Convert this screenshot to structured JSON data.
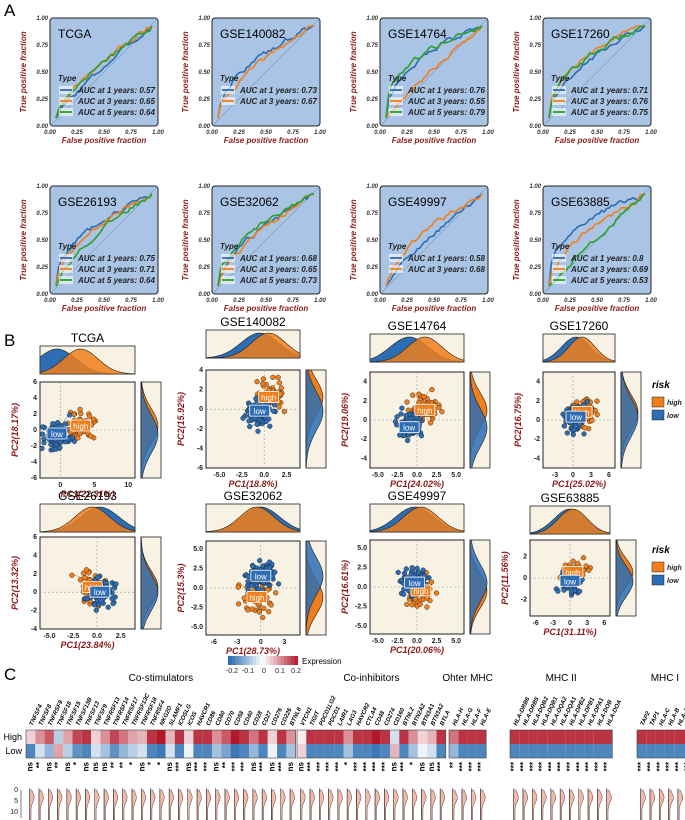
{
  "panel_labels": [
    "A",
    "B",
    "C"
  ],
  "chart_data": [
    {
      "type": "line",
      "panel": "A",
      "title": "Time-dependent ROC curves",
      "xlabel": "False positive fraction",
      "ylabel": "True positive fraction",
      "xlim": [
        0,
        1
      ],
      "ylim": [
        0,
        1
      ],
      "ticks": [
        "0.00",
        "0.25",
        "0.50",
        "0.75",
        "1.00"
      ],
      "legend_title": "Type",
      "colors": {
        "1": "#2d6db3",
        "3": "#f07f1b",
        "5": "#2ca02c",
        "bg": "#a9c4e4"
      },
      "plots": [
        {
          "name": "TCGA",
          "legend": [
            "AUC at 1 years: 0.57",
            "AUC at 3 years: 0.65",
            "AUC at 5 years: 0.64"
          ],
          "auc": [
            0.57,
            0.65,
            0.64
          ]
        },
        {
          "name": "GSE140082",
          "legend": [
            "AUC at 1 years: 0.73",
            "AUC at 3 years: 0.67"
          ],
          "auc": [
            0.73,
            0.67
          ]
        },
        {
          "name": "GSE14764",
          "legend": [
            "AUC at 1 years: 0.76",
            "AUC at 3 years: 0.55",
            "AUC at 5 years: 0.79"
          ],
          "auc": [
            0.76,
            0.55,
            0.79
          ]
        },
        {
          "name": "GSE17260",
          "legend": [
            "AUC at 1 years: 0.71",
            "AUC at 3 years: 0.76",
            "AUC at 5 years: 0.75"
          ],
          "auc": [
            0.71,
            0.76,
            0.75
          ]
        },
        {
          "name": "GSE26193",
          "legend": [
            "AUC at 1 years: 0.75",
            "AUC at 3 years: 0.71",
            "AUC at 5 years: 0.64"
          ],
          "auc": [
            0.75,
            0.71,
            0.64
          ]
        },
        {
          "name": "GSE32062",
          "legend": [
            "AUC at 1 years: 0.68",
            "AUC at 3 years: 0.65",
            "AUC at 5 years: 0.73"
          ],
          "auc": [
            0.68,
            0.65,
            0.73
          ]
        },
        {
          "name": "GSE49997",
          "legend": [
            "AUC at 1 years: 0.58",
            "AUC at 3 years: 0.68"
          ],
          "auc": [
            0.58,
            0.68
          ]
        },
        {
          "name": "GSE63885",
          "legend": [
            "AUC at 1 years: 0.8",
            "AUC at 3 years: 0.69",
            "AUC at 5 years: 0.53"
          ],
          "auc": [
            0.8,
            0.69,
            0.53
          ]
        }
      ]
    },
    {
      "type": "scatter",
      "panel": "B",
      "title": "PCA by risk group",
      "legend_title": "risk",
      "legend": [
        "high",
        "low"
      ],
      "colors": {
        "high": "#f07f1b",
        "low": "#2d6db3",
        "bg": "#f8f2e4"
      },
      "plots": [
        {
          "name": "TCGA",
          "xlabel": "PC1(22.31%)",
          "ylabel": "PC2(18.17%)",
          "xticks": [
            "0",
            "5",
            "10"
          ],
          "yticks": [
            "6",
            "4",
            "2",
            "0",
            "-2",
            "-4",
            "-6"
          ],
          "xlim": [
            -3,
            11
          ],
          "ylim": [
            -6,
            6
          ],
          "high_center": [
            3,
            0.5
          ],
          "low_center": [
            -0.5,
            -0.5
          ]
        },
        {
          "name": "GSE140082",
          "xlabel": "PC1(18.8%)",
          "ylabel": "PC2(15.92%)",
          "xticks": [
            "-5.0",
            "-2.5",
            "0.0",
            "2.5"
          ],
          "yticks": [
            "4",
            "2",
            "0",
            "-2",
            "-4",
            "-6"
          ],
          "xlim": [
            -6.5,
            4
          ],
          "ylim": [
            -6,
            4
          ],
          "high_center": [
            0.5,
            1.2
          ],
          "low_center": [
            -0.5,
            -0.2
          ]
        },
        {
          "name": "GSE14764",
          "xlabel": "PC1(24.02%)",
          "ylabel": "PC2(19.06%)",
          "xticks": [
            "-5.0",
            "-2.5",
            "0.0",
            "2.5",
            "5.0"
          ],
          "yticks": [
            "4",
            "2",
            "0",
            "-2",
            "-4"
          ],
          "xlim": [
            -6,
            6
          ],
          "ylim": [
            -5,
            5
          ],
          "high_center": [
            1,
            1
          ],
          "low_center": [
            -1,
            -0.8
          ]
        },
        {
          "name": "GSE17260",
          "xlabel": "PC1(25.02%)",
          "ylabel": "PC2(16.75%)",
          "xticks": [
            "-3",
            "0",
            "3",
            "6"
          ],
          "yticks": [
            "4",
            "2",
            "0",
            "-2",
            "-4"
          ],
          "xlim": [
            -5,
            7
          ],
          "ylim": [
            -5,
            5
          ],
          "high_center": [
            1.5,
            0.8
          ],
          "low_center": [
            0.5,
            0.3
          ]
        },
        {
          "name": "GSE26193",
          "xlabel": "PC1(23.84%)",
          "ylabel": "PC2(13.32%)",
          "xticks": [
            "-5.0",
            "-2.5",
            "0.0",
            "2.5"
          ],
          "yticks": [
            "6",
            "4",
            "2",
            "0",
            "-2",
            "-4"
          ],
          "xlim": [
            -6,
            4
          ],
          "ylim": [
            -4,
            6
          ],
          "high_center": [
            -0.5,
            0.5
          ],
          "low_center": [
            0.3,
            0
          ]
        },
        {
          "name": "GSE32062",
          "xlabel": "PC1(28.73%)",
          "ylabel": "PC2(15.3%)",
          "xticks": [
            "-6",
            "-3",
            "0",
            "3"
          ],
          "yticks": [
            "5.0",
            "2.5",
            "0.0",
            "-2.5",
            "-5.0"
          ],
          "xlim": [
            -7,
            5
          ],
          "ylim": [
            -6,
            6
          ],
          "high_center": [
            -0.5,
            -1.2
          ],
          "low_center": [
            0,
            1.5
          ]
        },
        {
          "name": "GSE49997",
          "xlabel": "PC1(20.06%)",
          "ylabel": "PC2(16.61%)",
          "xticks": [
            "-5.0",
            "-2.5",
            "0.0",
            "2.5",
            "5.0"
          ],
          "yticks": [
            "5.0",
            "2.5",
            "0.0",
            "-2.5",
            "-5.0"
          ],
          "xlim": [
            -6,
            6
          ],
          "ylim": [
            -6,
            6
          ],
          "high_center": [
            0.5,
            -0.5
          ],
          "low_center": [
            -0.3,
            0.5
          ]
        },
        {
          "name": "GSE63885",
          "xlabel": "PC1(31.11%)",
          "ylabel": "PC2(11.56%)",
          "xticks": [
            "-6",
            "-3",
            "0",
            "3",
            "6"
          ],
          "yticks": [
            "2",
            "0",
            "-2"
          ],
          "xlim": [
            -7,
            7
          ],
          "ylim": [
            -3.5,
            3.5
          ],
          "high_center": [
            0.5,
            0.5
          ],
          "low_center": [
            0,
            -0.3
          ]
        }
      ]
    },
    {
      "type": "heatmap",
      "panel": "C",
      "legend_title": "Expression",
      "legend_ticks": [
        "-0.2",
        "-0.1",
        "0",
        "0.1",
        "0.2"
      ],
      "rows": [
        "High",
        "Low"
      ],
      "density_yticks": [
        "0",
        "5",
        "10"
      ],
      "groups": [
        {
          "name": "Co-stimulators",
          "genes": [
            "TNFSF4",
            "TNFSF8",
            "TNFRSF9",
            "TNFSF18",
            "TNFSF15",
            "TNFSF13B",
            "TNFSF13",
            "TNFSF9",
            "TNFRSF13",
            "TNFRSF14",
            "TNFRSF17",
            "TNFRSF13C",
            "TNFRSF18",
            "TNFRSF4",
            "NKG2D",
            "SLAMF1",
            "ICOSLG",
            "ICOS",
            "HAVCR1",
            "CD86",
            "CD80",
            "CD70",
            "CD58",
            "CD40",
            "CD28",
            "CD27",
            "CD276",
            "CD226",
            "BTNL8"
          ],
          "sig": [
            "ns",
            "**",
            "ns",
            "**",
            "ns",
            "*",
            "ns",
            "ns",
            "ns",
            "**",
            "**",
            "*",
            "ns",
            "*",
            "*",
            "ns",
            "***",
            "ns",
            "***",
            "***",
            "ns",
            "**",
            "***",
            "***",
            "ns",
            "***",
            "ns",
            "***",
            "ns"
          ]
        },
        {
          "name": "Co-inhibitors",
          "genes": [
            "VTCN1",
            "TIGIT",
            "PDCD1LG2",
            "PDCD1",
            "LAIR1",
            "LAG3",
            "HAVCR2",
            "CTLA4",
            "CD48",
            "CD274",
            "CD160",
            "BTNL2",
            "BTN2A2",
            "BTN3A1",
            "BTN3A2",
            "BTLA"
          ],
          "sig": [
            "ns",
            "***",
            "***",
            "***",
            "***",
            "*",
            "***",
            "***",
            "***",
            "***",
            "ns",
            "***",
            "*",
            "ns",
            "ns",
            "***"
          ]
        },
        {
          "name": "Ohter MHC",
          "genes": [
            "HLA-H",
            "HLA-G",
            "HLA-F",
            "HLA-E"
          ],
          "sig": [
            "**",
            "***",
            "***",
            "***"
          ]
        },
        {
          "name": "MHC II",
          "genes": [
            "HLA-DRB6",
            "HLA-DRB5",
            "HLA-DQB2",
            "HLA-DQB1",
            "HLA-DQA2",
            "HLA-DQA1",
            "HLA-DPB2",
            "HLA-DPB1",
            "HLA-DPA1",
            "HLA-DOB",
            "HLA-DOA"
          ],
          "sig": [
            "***",
            "***",
            "***",
            "***",
            "***",
            "***",
            "***",
            "***",
            "***",
            "***",
            "***"
          ]
        },
        {
          "name": "MHC I",
          "genes": [
            "TAP2",
            "TAP1",
            "HLA-C",
            "HLA-B",
            "HLA-A",
            "B2M"
          ],
          "sig": [
            "***",
            "***",
            "***",
            "***",
            "***",
            "***"
          ]
        }
      ],
      "values_high": [
        [
          0.05,
          0.12,
          0.18,
          -0.08,
          0.1,
          0.2,
          0.22,
          0.05,
          0.12,
          0.2,
          0.15,
          0.1,
          0.08,
          0.22,
          0.25,
          0.08,
          0.22,
          0.05,
          0.22,
          0.22,
          0.12,
          0.18,
          0.25,
          0.22,
          0.15,
          0.22,
          0.05,
          0.22,
          0.12
        ],
        [
          0.02,
          0.22,
          0.22,
          0.22,
          0.22,
          0.12,
          0.22,
          0.22,
          0.25,
          0.22,
          -0.05,
          0.22,
          0.12,
          0.05,
          0.08,
          0.22
        ],
        [
          0.15,
          0.22,
          0.22,
          0.22
        ],
        [
          0.22,
          0.22,
          0.22,
          0.22,
          0.22,
          0.22,
          0.22,
          0.22,
          0.22,
          0.22,
          0.22
        ],
        [
          0.22,
          0.22,
          0.22,
          0.22,
          0.22,
          0.22
        ]
      ],
      "values_low": [
        [
          -0.2,
          -0.05,
          -0.12,
          0.1,
          -0.08,
          -0.18,
          -0.2,
          -0.05,
          -0.1,
          -0.18,
          -0.12,
          -0.08,
          -0.05,
          -0.2,
          -0.22,
          -0.05,
          -0.2,
          -0.02,
          -0.2,
          -0.2,
          -0.1,
          -0.15,
          -0.22,
          -0.2,
          -0.12,
          -0.2,
          -0.02,
          -0.2,
          -0.1
        ],
        [
          0.05,
          -0.2,
          -0.2,
          -0.2,
          -0.2,
          -0.1,
          -0.2,
          -0.2,
          -0.22,
          -0.2,
          0.08,
          -0.2,
          -0.1,
          -0.02,
          -0.05,
          -0.2
        ],
        [
          -0.12,
          -0.2,
          -0.2,
          -0.2
        ],
        [
          -0.2,
          -0.2,
          -0.2,
          -0.2,
          -0.2,
          -0.2,
          -0.2,
          -0.2,
          -0.2,
          -0.2,
          -0.2
        ],
        [
          -0.2,
          -0.2,
          -0.2,
          -0.2,
          -0.2,
          -0.2
        ]
      ]
    }
  ]
}
